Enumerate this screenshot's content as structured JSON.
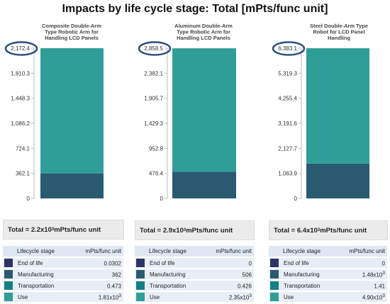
{
  "title": "Impacts by life cycle stage: Total [mPts/func unit]",
  "colors": {
    "end_of_life": "#2d3566",
    "manufacturing": "#2a5a70",
    "transportation": "#147f86",
    "use": "#2f9e98",
    "highlight_ellipse": "#2b4f80"
  },
  "legend_header": {
    "stage": "Lifecycle stage",
    "unit": "mPts/func unit"
  },
  "stage_labels": [
    "End of life",
    "Manufacturing",
    "Transportation",
    "Use"
  ],
  "panels": [
    {
      "title_lines": [
        "Composite Double-Arm",
        "Type Robotic Arm for",
        "Handling LCD Panels"
      ],
      "total_text": "Total = 2.2x10",
      "total_exp": "3",
      "total_unit": " mPts/func unit",
      "rows": [
        {
          "base": "0.0302",
          "exp": ""
        },
        {
          "base": "362",
          "exp": ""
        },
        {
          "base": "0.473",
          "exp": ""
        },
        {
          "base": "1.81x10",
          "exp": "3"
        }
      ]
    },
    {
      "title_lines": [
        "Aluminum Double-Arm",
        "Type Robotic Arm for",
        "Handling LCD Panels"
      ],
      "total_text": "Total = 2.9x10",
      "total_exp": "3",
      "total_unit": " mPts/func unit",
      "rows": [
        {
          "base": "0",
          "exp": ""
        },
        {
          "base": "506",
          "exp": ""
        },
        {
          "base": "0.426",
          "exp": ""
        },
        {
          "base": "2.35x10",
          "exp": "3"
        }
      ]
    },
    {
      "title_lines": [
        "Steel Double-Arm Type",
        "Robot for LCD Panel",
        "Handling"
      ],
      "total_text": "Total = 6.4x10",
      "total_exp": "3",
      "total_unit": " mPts/func unit",
      "rows": [
        {
          "base": "0",
          "exp": ""
        },
        {
          "base": "1.48x10",
          "exp": "3"
        },
        {
          "base": "1.41",
          "exp": ""
        },
        {
          "base": "4.90x10",
          "exp": "3"
        }
      ]
    }
  ],
  "chart_data": [
    {
      "type": "bar",
      "stacked": true,
      "title": "Composite Double-Arm Type Robotic Arm for Handling LCD Panels",
      "ylim": [
        0,
        2172.4
      ],
      "yticks": [
        "0",
        "362.1",
        "724.1",
        "1,086.2",
        "1,448.3",
        "1,810.3",
        "2,172.4"
      ],
      "circled_tick": "2,172.4",
      "series": [
        {
          "name": "End of life",
          "values": [
            0.0302
          ]
        },
        {
          "name": "Manufacturing",
          "values": [
            362
          ]
        },
        {
          "name": "Transportation",
          "values": [
            0.473
          ]
        },
        {
          "name": "Use",
          "values": [
            1810
          ]
        }
      ]
    },
    {
      "type": "bar",
      "stacked": true,
      "title": "Aluminum Double-Arm Type Robotic Arm for Handling LCD Panels",
      "ylim": [
        0,
        2858.5
      ],
      "yticks": [
        "0",
        "476.4",
        "952.8",
        "1,429.3",
        "1,905.7",
        "2,382.1",
        "2,858.5"
      ],
      "circled_tick": "2,858.5",
      "series": [
        {
          "name": "End of life",
          "values": [
            0
          ]
        },
        {
          "name": "Manufacturing",
          "values": [
            506
          ]
        },
        {
          "name": "Transportation",
          "values": [
            0.426
          ]
        },
        {
          "name": "Use",
          "values": [
            2350
          ]
        }
      ]
    },
    {
      "type": "bar",
      "stacked": true,
      "title": "Steel Double-Arm Type Robot for LCD Panel Handling",
      "ylim": [
        0,
        6383.1
      ],
      "yticks": [
        "0",
        "1,063.9",
        "2,127.7",
        "3,191.6",
        "4,255.4",
        "5,319.3",
        "6,383.1"
      ],
      "circled_tick": "6,383.1",
      "series": [
        {
          "name": "End of life",
          "values": [
            0
          ]
        },
        {
          "name": "Manufacturing",
          "values": [
            1480
          ]
        },
        {
          "name": "Transportation",
          "values": [
            1.41
          ]
        },
        {
          "name": "Use",
          "values": [
            4900
          ]
        }
      ]
    }
  ]
}
